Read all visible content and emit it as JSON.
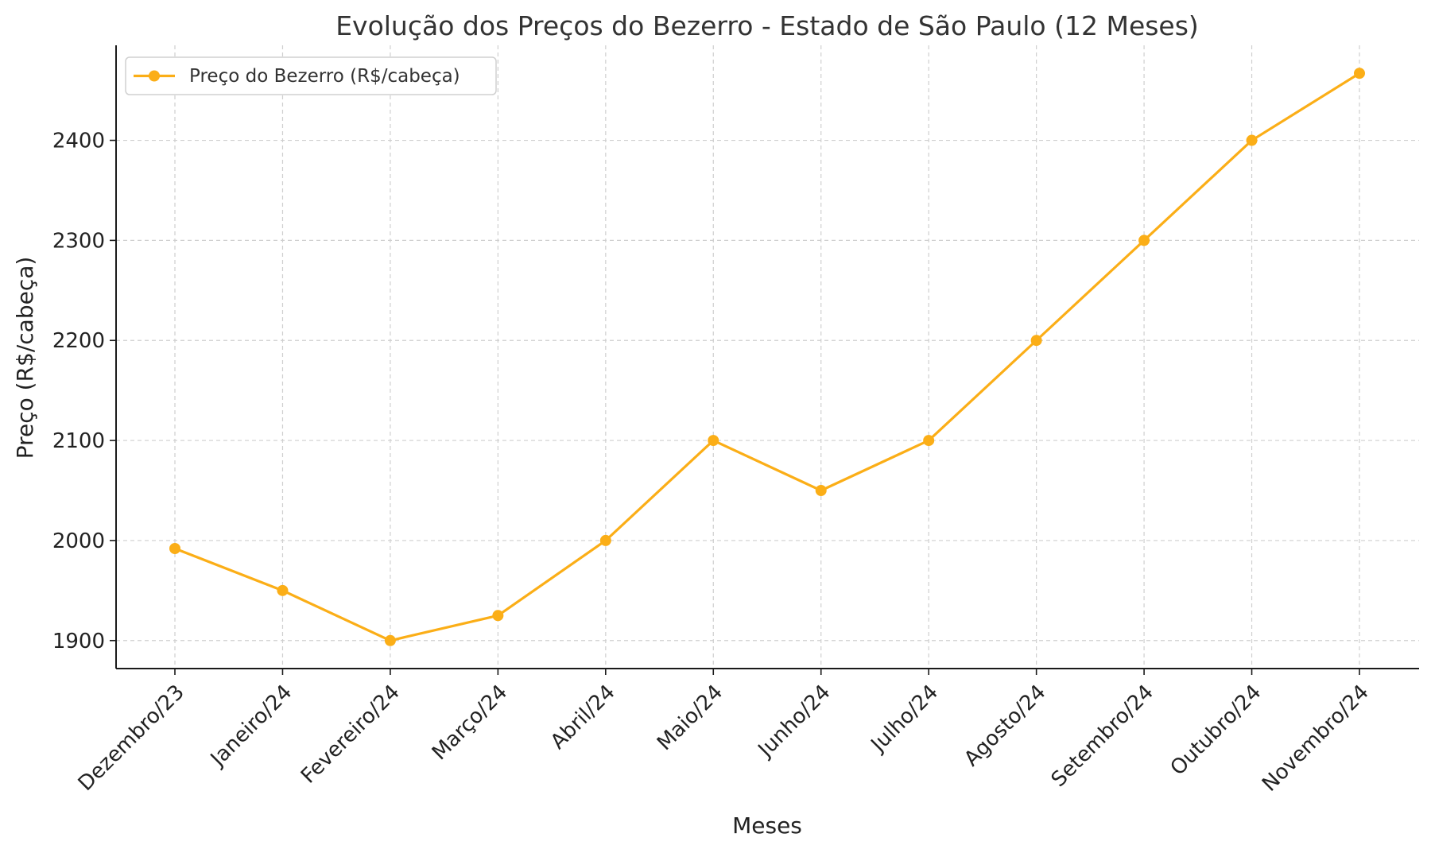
{
  "chart_data": {
    "type": "line",
    "title": "Evolução dos Preços do Bezerro - Estado de São Paulo (12 Meses)",
    "xlabel": "Meses",
    "ylabel": "Preço (R$/cabeça)",
    "categories": [
      "Dezembro/23",
      "Janeiro/24",
      "Fevereiro/24",
      "Março/24",
      "Abril/24",
      "Maio/24",
      "Junho/24",
      "Julho/24",
      "Agosto/24",
      "Setembro/24",
      "Outubro/24",
      "Novembro/24"
    ],
    "series": [
      {
        "name": "Preço do Bezerro (R$/cabeça)",
        "color": "#FBAE17",
        "marker": "circle",
        "values": [
          1992,
          1950,
          1900,
          1925,
          2000,
          2100,
          2050,
          2100,
          2200,
          2300,
          2400,
          2467
        ]
      }
    ],
    "yticks": [
      1900,
      2000,
      2100,
      2200,
      2300,
      2400
    ],
    "ylim": [
      1872,
      2495
    ],
    "grid": true,
    "legend_position": "top-left"
  }
}
